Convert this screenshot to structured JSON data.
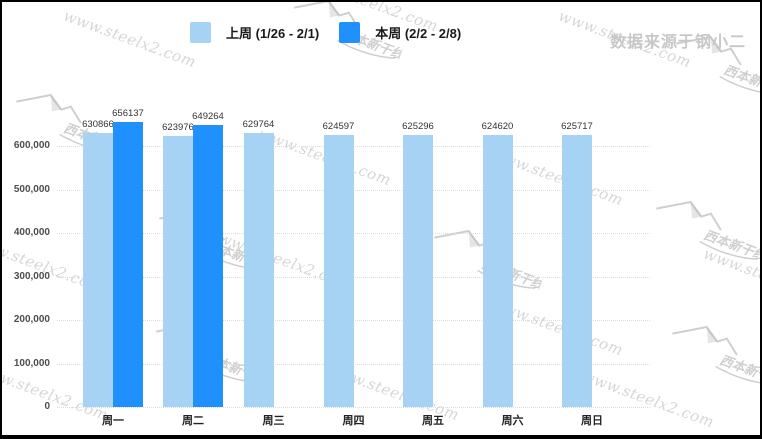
{
  "source_label": "数据来源于钢小二",
  "watermark": {
    "url_text": "www.steelx2.com",
    "brand_text": "西本新干线"
  },
  "legend": {
    "items": [
      {
        "label": "上周 (1/26 - 2/1)",
        "color": "#a6d2f3"
      },
      {
        "label": "本周 (2/2 - 2/8)",
        "color": "#2090ff"
      }
    ]
  },
  "chart_data": {
    "type": "bar",
    "title": "",
    "xlabel": "",
    "ylabel": "",
    "categories": [
      "周一",
      "周二",
      "周三",
      "周四",
      "周五",
      "周六",
      "周日"
    ],
    "series": [
      {
        "name": "上周 (1/26 - 2/1)",
        "color": "#a6d2f3",
        "values": [
          630866,
          623976,
          629764,
          624597,
          625296,
          624620,
          625717
        ]
      },
      {
        "name": "本周 (2/2 - 2/8)",
        "color": "#2090ff",
        "values": [
          656137,
          649264,
          null,
          null,
          null,
          null,
          null
        ]
      }
    ],
    "ylim": [
      0,
      600000
    ],
    "ytick_interval": 100000,
    "ytick_labels": [
      "0",
      "100,000",
      "200,000",
      "300,000",
      "400,000",
      "500,000",
      "600,000"
    ],
    "grid": "horizontal-dotted",
    "legend_position": "top-center",
    "value_labels": true
  }
}
